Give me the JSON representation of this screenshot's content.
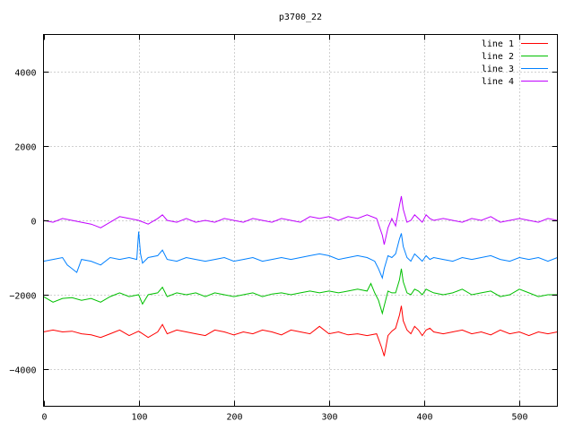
{
  "chart_data": {
    "type": "line",
    "title": "p3700_22",
    "xlabel": "",
    "ylabel": "",
    "xlim": [
      0,
      540
    ],
    "ylim": [
      -5000,
      5000
    ],
    "xticks": [
      0,
      100,
      200,
      300,
      400,
      500
    ],
    "yticks": [
      -4000,
      -2000,
      0,
      2000,
      4000
    ],
    "grid": true,
    "legend_position": "top-right",
    "series": [
      {
        "name": "line 1",
        "color": "#ff0000",
        "x": [
          0,
          10,
          20,
          30,
          40,
          50,
          60,
          70,
          80,
          90,
          100,
          110,
          120,
          125,
          130,
          140,
          150,
          160,
          170,
          180,
          190,
          200,
          210,
          220,
          230,
          240,
          250,
          260,
          270,
          280,
          290,
          300,
          310,
          320,
          330,
          340,
          350,
          355,
          358,
          362,
          366,
          370,
          374,
          376,
          378,
          382,
          386,
          390,
          394,
          398,
          402,
          406,
          410,
          420,
          430,
          440,
          450,
          460,
          470,
          480,
          490,
          500,
          510,
          520,
          530,
          540
        ],
        "y": [
          -3000,
          -2950,
          -3000,
          -2980,
          -3050,
          -3080,
          -3150,
          -3050,
          -2950,
          -3100,
          -2980,
          -3150,
          -3000,
          -2800,
          -3050,
          -2950,
          -3000,
          -3050,
          -3100,
          -2950,
          -3000,
          -3080,
          -3000,
          -3050,
          -2950,
          -3000,
          -3080,
          -2950,
          -3000,
          -3050,
          -2850,
          -3050,
          -3000,
          -3080,
          -3050,
          -3100,
          -3050,
          -3400,
          -3650,
          -3100,
          -2980,
          -2900,
          -2550,
          -2300,
          -2700,
          -2950,
          -3050,
          -2850,
          -2950,
          -3100,
          -2950,
          -2900,
          -3000,
          -3050,
          -3000,
          -2950,
          -3050,
          -3000,
          -3080,
          -2950,
          -3050,
          -3000,
          -3100,
          -3000,
          -3050,
          -3000
        ]
      },
      {
        "name": "line 2",
        "color": "#00c000",
        "x": [
          0,
          10,
          20,
          30,
          40,
          50,
          60,
          70,
          80,
          90,
          100,
          104,
          110,
          120,
          125,
          130,
          140,
          150,
          160,
          170,
          180,
          190,
          200,
          210,
          220,
          230,
          240,
          250,
          260,
          270,
          280,
          290,
          300,
          310,
          320,
          330,
          340,
          344,
          348,
          352,
          356,
          358,
          362,
          366,
          370,
          374,
          376,
          378,
          382,
          386,
          390,
          394,
          398,
          402,
          406,
          410,
          420,
          430,
          440,
          450,
          460,
          470,
          480,
          490,
          500,
          510,
          520,
          530,
          540
        ],
        "y": [
          -2050,
          -2200,
          -2100,
          -2080,
          -2150,
          -2100,
          -2200,
          -2050,
          -1950,
          -2050,
          -2000,
          -2250,
          -2000,
          -1950,
          -1800,
          -2050,
          -1950,
          -2000,
          -1950,
          -2050,
          -1950,
          -2000,
          -2050,
          -2000,
          -1950,
          -2050,
          -1980,
          -1950,
          -2000,
          -1950,
          -1900,
          -1950,
          -1900,
          -1950,
          -1900,
          -1850,
          -1900,
          -1700,
          -1950,
          -2150,
          -2500,
          -2300,
          -1900,
          -1950,
          -1950,
          -1600,
          -1300,
          -1650,
          -1950,
          -2000,
          -1850,
          -1900,
          -2000,
          -1850,
          -1900,
          -1950,
          -2000,
          -1950,
          -1850,
          -2000,
          -1950,
          -1900,
          -2050,
          -2000,
          -1850,
          -1950,
          -2050,
          -2000,
          -2000
        ]
      },
      {
        "name": "line 3",
        "color": "#0080ff",
        "x": [
          0,
          10,
          20,
          25,
          30,
          35,
          40,
          50,
          60,
          70,
          80,
          90,
          98,
          100,
          102,
          104,
          110,
          120,
          125,
          130,
          140,
          150,
          160,
          170,
          180,
          190,
          200,
          210,
          220,
          230,
          240,
          250,
          260,
          270,
          280,
          290,
          300,
          310,
          320,
          330,
          340,
          348,
          352,
          356,
          358,
          362,
          366,
          370,
          374,
          376,
          378,
          382,
          386,
          390,
          394,
          398,
          402,
          406,
          410,
          420,
          430,
          440,
          450,
          460,
          470,
          480,
          490,
          500,
          510,
          520,
          530,
          540
        ],
        "y": [
          -1100,
          -1050,
          -1000,
          -1200,
          -1300,
          -1400,
          -1050,
          -1100,
          -1200,
          -1000,
          -1050,
          -1000,
          -1050,
          -300,
          -900,
          -1150,
          -1000,
          -950,
          -800,
          -1050,
          -1100,
          -1000,
          -1050,
          -1100,
          -1050,
          -1000,
          -1100,
          -1050,
          -1000,
          -1100,
          -1050,
          -1000,
          -1050,
          -1000,
          -950,
          -900,
          -950,
          -1050,
          -1000,
          -950,
          -1000,
          -1100,
          -1300,
          -1550,
          -1300,
          -950,
          -1000,
          -900,
          -500,
          -350,
          -700,
          -1000,
          -1100,
          -900,
          -1000,
          -1100,
          -950,
          -1050,
          -1000,
          -1050,
          -1100,
          -1000,
          -1050,
          -1000,
          -950,
          -1050,
          -1100,
          -1000,
          -1050,
          -1000,
          -1100,
          -1000
        ]
      },
      {
        "name": "line 4",
        "color": "#c000ff",
        "x": [
          0,
          10,
          20,
          30,
          40,
          50,
          55,
          60,
          70,
          80,
          90,
          100,
          110,
          120,
          125,
          130,
          140,
          150,
          160,
          170,
          180,
          190,
          200,
          210,
          220,
          230,
          240,
          250,
          260,
          270,
          280,
          290,
          300,
          310,
          320,
          330,
          340,
          350,
          356,
          358,
          362,
          366,
          370,
          374,
          376,
          378,
          382,
          386,
          390,
          394,
          398,
          402,
          406,
          410,
          420,
          430,
          440,
          450,
          460,
          470,
          480,
          490,
          500,
          510,
          520,
          530,
          540
        ],
        "y": [
          0,
          -50,
          50,
          0,
          -50,
          -100,
          -150,
          -200,
          -50,
          100,
          50,
          0,
          -100,
          50,
          150,
          0,
          -50,
          50,
          -50,
          0,
          -50,
          50,
          0,
          -50,
          50,
          0,
          -50,
          50,
          0,
          -50,
          100,
          50,
          100,
          0,
          100,
          50,
          150,
          50,
          -400,
          -650,
          -200,
          50,
          -150,
          400,
          650,
          300,
          -50,
          0,
          150,
          50,
          -50,
          150,
          50,
          0,
          50,
          0,
          -50,
          50,
          0,
          100,
          -50,
          0,
          50,
          0,
          -50,
          50,
          0
        ]
      }
    ]
  }
}
